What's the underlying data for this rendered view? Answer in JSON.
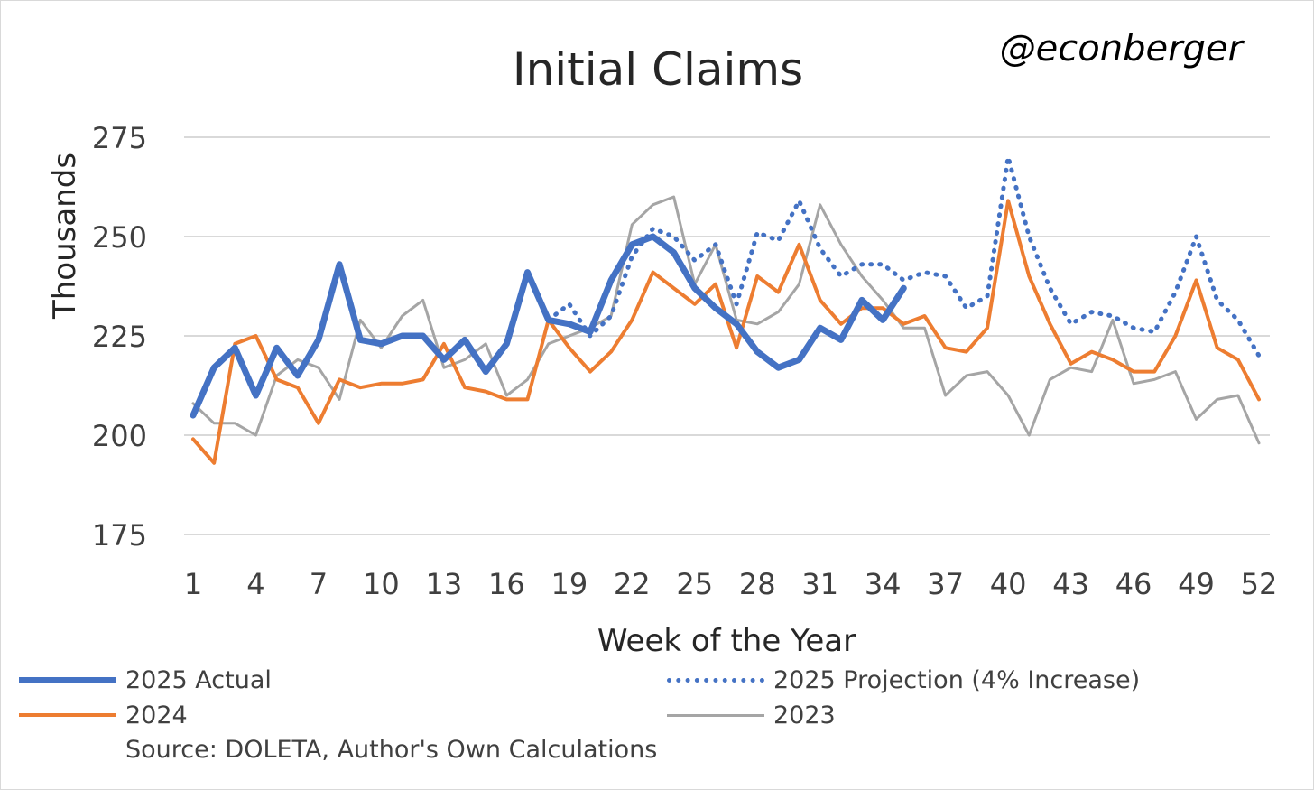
{
  "chart_data": {
    "type": "line",
    "title": "Initial Claims",
    "watermark": "@econberger",
    "xlabel": "Week of the Year",
    "ylabel": "Thousands",
    "ylim": [
      175,
      275
    ],
    "yticks": [
      175,
      200,
      225,
      250,
      275
    ],
    "xlim": [
      1,
      52
    ],
    "xticks": [
      1,
      4,
      7,
      10,
      13,
      16,
      19,
      22,
      25,
      28,
      31,
      34,
      37,
      40,
      43,
      46,
      49,
      52
    ],
    "grid": true,
    "legend_position": "bottom",
    "source_note": "Source: DOLETA, Author's Own Calculations",
    "series": [
      {
        "name": "2025 Actual",
        "color": "#4472c4",
        "style": "solid-thick",
        "weeks": [
          1,
          2,
          3,
          4,
          5,
          6,
          7,
          8,
          9,
          10,
          11,
          12,
          13,
          14,
          15,
          16,
          17,
          18,
          19,
          20,
          21,
          22,
          23,
          24,
          25,
          26,
          27,
          28,
          29,
          30,
          31,
          32,
          33,
          34,
          35
        ],
        "values": [
          205,
          217,
          222,
          210,
          222,
          215,
          224,
          243,
          224,
          223,
          225,
          225,
          219,
          224,
          216,
          223,
          241,
          229,
          228,
          226,
          239,
          248,
          250,
          246,
          237,
          232,
          228,
          221,
          217,
          219,
          227,
          224,
          234,
          229,
          237
        ]
      },
      {
        "name": "2025 Projection (4% Increase)",
        "color": "#4472c4",
        "style": "dotted",
        "weeks": [
          18,
          19,
          20,
          21,
          22,
          23,
          24,
          25,
          26,
          27,
          28,
          29,
          30,
          31,
          32,
          33,
          34,
          35,
          36,
          37,
          38,
          39,
          40,
          41,
          42,
          43,
          44,
          45,
          46,
          47,
          48,
          49,
          50,
          51,
          52
        ],
        "values": [
          229,
          233,
          225,
          230,
          245,
          252,
          250,
          244,
          248,
          233,
          251,
          249,
          259,
          247,
          240,
          243,
          243,
          239,
          241,
          240,
          232,
          235,
          270,
          250,
          237,
          228,
          231,
          230,
          227,
          226,
          236,
          250,
          234,
          229,
          220
        ]
      },
      {
        "name": "2024",
        "color": "#ed7d31",
        "style": "solid",
        "weeks": [
          1,
          2,
          3,
          4,
          5,
          6,
          7,
          8,
          9,
          10,
          11,
          12,
          13,
          14,
          15,
          16,
          17,
          18,
          19,
          20,
          21,
          22,
          23,
          24,
          25,
          26,
          27,
          28,
          29,
          30,
          31,
          32,
          33,
          34,
          35,
          36,
          37,
          38,
          39,
          40,
          41,
          42,
          43,
          44,
          45,
          46,
          47,
          48,
          49,
          50,
          51,
          52
        ],
        "values": [
          199,
          193,
          223,
          225,
          214,
          212,
          203,
          214,
          212,
          213,
          213,
          214,
          223,
          212,
          211,
          209,
          209,
          229,
          222,
          216,
          221,
          229,
          241,
          237,
          233,
          238,
          222,
          240,
          236,
          248,
          234,
          228,
          232,
          232,
          228,
          230,
          222,
          221,
          227,
          259,
          240,
          228,
          218,
          221,
          219,
          216,
          216,
          225,
          239,
          222,
          219,
          209
        ]
      },
      {
        "name": "2023",
        "color": "#a5a5a5",
        "style": "solid-thin",
        "weeks": [
          1,
          2,
          3,
          4,
          5,
          6,
          7,
          8,
          9,
          10,
          11,
          12,
          13,
          14,
          15,
          16,
          17,
          18,
          19,
          20,
          21,
          22,
          23,
          24,
          25,
          26,
          27,
          28,
          29,
          30,
          31,
          32,
          33,
          34,
          35,
          36,
          37,
          38,
          39,
          40,
          41,
          42,
          43,
          44,
          45,
          46,
          47,
          48,
          49,
          50,
          51,
          52
        ],
        "values": [
          208,
          203,
          203,
          200,
          215,
          219,
          217,
          209,
          229,
          222,
          230,
          234,
          217,
          219,
          223,
          210,
          214,
          223,
          225,
          227,
          230,
          253,
          258,
          260,
          238,
          248,
          229,
          228,
          231,
          238,
          258,
          248,
          240,
          234,
          227,
          227,
          210,
          215,
          216,
          210,
          200,
          214,
          217,
          216,
          229,
          213,
          214,
          216,
          204,
          209,
          210,
          198
        ]
      }
    ]
  }
}
